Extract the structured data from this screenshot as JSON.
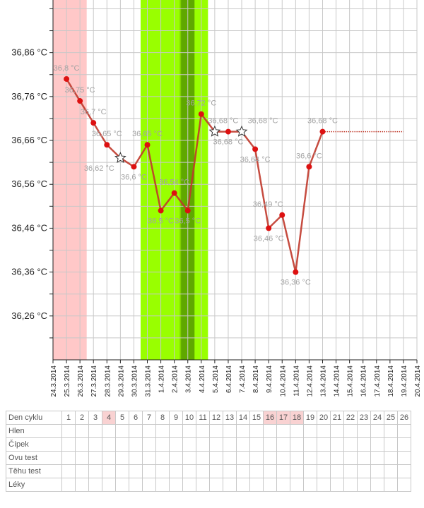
{
  "chart_data": {
    "type": "line",
    "y_ticks": [
      "36,26 °C",
      "36,36 °C",
      "36,46 °C",
      "36,56 °C",
      "36,66 °C",
      "36,76 °C",
      "36,86 °C"
    ],
    "y_tick_values": [
      36.26,
      36.36,
      36.46,
      36.56,
      36.66,
      36.76,
      36.86
    ],
    "ylim": [
      36.16,
      36.98
    ],
    "x_ticks": [
      "24.3.2014",
      "25.3.2014",
      "26.3.2014",
      "27.3.2014",
      "28.3.2014",
      "29.3.2014",
      "30.3.2014",
      "31.3.2014",
      "1.4.2014",
      "2.4.2014",
      "3.4.2014",
      "4.4.2014",
      "5.4.2014",
      "6.4.2014",
      "7.4.2014",
      "8.4.2014",
      "9.4.2014",
      "10.4.2014",
      "11.4.2014",
      "12.4.2014",
      "13.4.2014",
      "14.4.2014",
      "15.4.2014",
      "16.4.2014",
      "17.4.2014",
      "18.4.2014",
      "19.4.2014",
      "20.4.2014"
    ],
    "grid": true,
    "series": [
      {
        "color": "#c0392b",
        "points": [
          {
            "x": "25.3.2014",
            "y": 36.8,
            "label": "36,8 °C",
            "marker": "dot"
          },
          {
            "x": "26.3.2014",
            "y": 36.75,
            "label": "36,75 °C",
            "marker": "dot"
          },
          {
            "x": "27.3.2014",
            "y": 36.7,
            "label": "36,7 °C",
            "marker": "dot"
          },
          {
            "x": "28.3.2014",
            "y": 36.65,
            "label": "36,65 °C",
            "marker": "dot"
          },
          {
            "x": "29.3.2014",
            "y": 36.62,
            "label": "36,62 °C",
            "marker": "star"
          },
          {
            "x": "30.3.2014",
            "y": 36.6,
            "label": "36,6 °C",
            "marker": "dot"
          },
          {
            "x": "31.3.2014",
            "y": 36.65,
            "label": "36,65 °C",
            "marker": "dot"
          },
          {
            "x": "1.4.2014",
            "y": 36.5,
            "label": "36,5 °C",
            "marker": "dot"
          },
          {
            "x": "2.4.2014",
            "y": 36.54,
            "label": "36,54 °C",
            "marker": "dot"
          },
          {
            "x": "3.4.2014",
            "y": 36.5,
            "label": "36,5 °C",
            "marker": "dot"
          },
          {
            "x": "4.4.2014",
            "y": 36.72,
            "label": "36,72 °C",
            "marker": "dot"
          },
          {
            "x": "5.4.2014",
            "y": 36.68,
            "label": "36,68 °C",
            "marker": "star"
          },
          {
            "x": "6.4.2014",
            "y": 36.68,
            "label": "36,68 °C",
            "marker": "dot"
          },
          {
            "x": "7.4.2014",
            "y": 36.68,
            "label": "36,68 °C",
            "marker": "star"
          },
          {
            "x": "8.4.2014",
            "y": 36.64,
            "label": "36,64 °C",
            "marker": "dot"
          },
          {
            "x": "9.4.2014",
            "y": 36.46,
            "label": "36,46 °C",
            "marker": "dot"
          },
          {
            "x": "10.4.2014",
            "y": 36.49,
            "label": "36,49 °C",
            "marker": "dot"
          },
          {
            "x": "11.4.2014",
            "y": 36.36,
            "label": "36,36 °C",
            "marker": "dot"
          },
          {
            "x": "12.4.2014",
            "y": 36.6,
            "label": "36,6 °C",
            "marker": "dot"
          },
          {
            "x": "13.4.2014",
            "y": 36.68,
            "label": "36,68 °C",
            "marker": "dot"
          }
        ]
      }
    ],
    "reference_line": {
      "y": 36.68,
      "x_start": "13.4.2014",
      "x_end": "19.4.2014",
      "style": "dotted",
      "color": "#c0392b"
    },
    "bands": [
      {
        "x_start": "24.3.2014",
        "x_end": "27.3.2014",
        "color": "#ffc8c8"
      },
      {
        "x_start": "30.3.2014",
        "x_end": "4.4.2014",
        "color": "#99ff00"
      },
      {
        "x_start": "2.4.2014",
        "x_end": "3.4.2014",
        "color": "#7fd000"
      },
      {
        "x_start": "3.4.2014",
        "x_end": "3.4.2014",
        "color": "#5fa800"
      }
    ]
  },
  "table": {
    "row_labels": [
      "Den cyklu",
      "Hlen",
      "Čípek",
      "Ovu test",
      "Těhu test",
      "Léky"
    ],
    "days": [
      "1",
      "2",
      "3",
      "4",
      "5",
      "6",
      "7",
      "8",
      "9",
      "10",
      "11",
      "12",
      "13",
      "14",
      "15",
      "16",
      "17",
      "18",
      "19",
      "20",
      "21",
      "22",
      "23",
      "24",
      "25",
      "26"
    ],
    "highlighted_days": [
      "4",
      "16",
      "17",
      "18"
    ],
    "highlight_color": "#f9d2d2"
  }
}
